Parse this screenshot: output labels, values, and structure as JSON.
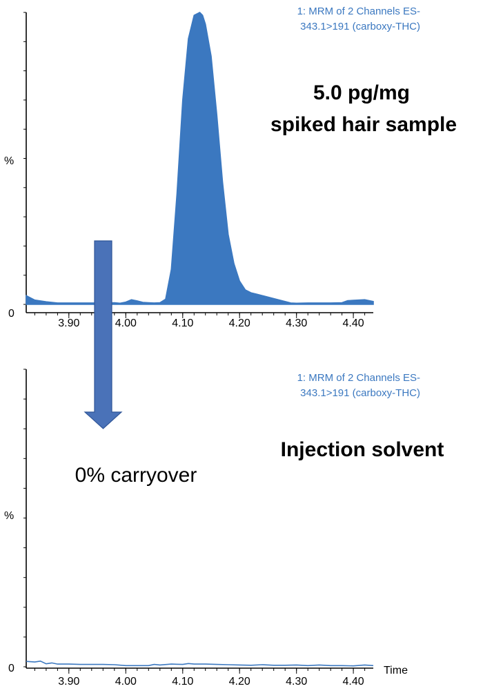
{
  "chart_data": [
    {
      "type": "line",
      "channel_line1": "1: MRM of 2 Channels ES-",
      "channel_line2": "343.1>191 (carboxy-THC)",
      "annotation_line1": "5.0 pg/mg",
      "annotation_line2": "spiked hair sample",
      "ylabel": "%",
      "y_zero_label": "0",
      "xlabel": "",
      "x_ticks": [
        "3.90",
        "4.00",
        "4.10",
        "4.20",
        "4.30",
        "4.40"
      ],
      "xlim": [
        3.825,
        4.435
      ],
      "ylim": [
        0,
        100
      ],
      "filled_peak": true,
      "color": "#3b78c0",
      "series": [
        {
          "x": [
            3.825,
            3.84,
            3.86,
            3.88,
            3.9,
            3.92,
            3.94,
            3.96,
            3.98,
            3.99,
            4.0,
            4.01,
            4.02,
            4.03,
            4.04,
            4.05,
            4.06,
            4.07,
            4.08,
            4.09,
            4.1,
            4.11,
            4.12,
            4.13,
            4.135,
            4.14,
            4.15,
            4.16,
            4.17,
            4.18,
            4.19,
            4.2,
            4.21,
            4.22,
            4.23,
            4.24,
            4.25,
            4.26,
            4.27,
            4.28,
            4.29,
            4.3,
            4.32,
            4.34,
            4.36,
            4.38,
            4.39,
            4.4,
            4.42,
            4.435
          ],
          "y": [
            3.0,
            1.5,
            0.9,
            0.5,
            0.5,
            0.5,
            0.5,
            0.5,
            0.6,
            0.4,
            0.8,
            1.6,
            1.2,
            0.7,
            0.6,
            0.5,
            0.6,
            1.8,
            12,
            38,
            70,
            91,
            99,
            100,
            99,
            96,
            85,
            65,
            42,
            24,
            14,
            8,
            5,
            4,
            3.5,
            3.0,
            2.5,
            2.0,
            1.5,
            1.0,
            0.5,
            0.4,
            0.5,
            0.5,
            0.5,
            0.6,
            1.3,
            1.4,
            1.6,
            1.0
          ]
        }
      ]
    },
    {
      "type": "line",
      "channel_line1": "1: MRM of 2 Channels ES-",
      "channel_line2": "343.1>191 (carboxy-THC)",
      "annotation_line1": "Injection solvent",
      "ylabel": "%",
      "y_zero_label": "0",
      "xlabel": "Time",
      "x_ticks": [
        "3.90",
        "4.00",
        "4.10",
        "4.20",
        "4.30",
        "4.40"
      ],
      "xlim": [
        3.825,
        4.435
      ],
      "ylim": [
        0,
        100
      ],
      "filled_peak": false,
      "color": "#3b78c0",
      "series": [
        {
          "x": [
            3.825,
            3.84,
            3.85,
            3.86,
            3.87,
            3.88,
            3.9,
            3.92,
            3.94,
            3.96,
            3.98,
            4.0,
            4.02,
            4.04,
            4.05,
            4.06,
            4.08,
            4.1,
            4.11,
            4.12,
            4.14,
            4.16,
            4.18,
            4.2,
            4.22,
            4.24,
            4.26,
            4.28,
            4.3,
            4.32,
            4.34,
            4.36,
            4.38,
            4.4,
            4.42,
            4.435
          ],
          "y": [
            1.8,
            1.6,
            1.9,
            1.0,
            1.3,
            0.9,
            0.9,
            0.8,
            0.8,
            0.8,
            0.7,
            0.4,
            0.4,
            0.4,
            0.8,
            0.6,
            0.9,
            0.8,
            1.1,
            0.9,
            0.9,
            0.8,
            0.7,
            0.6,
            0.5,
            0.7,
            0.5,
            0.5,
            0.6,
            0.4,
            0.6,
            0.4,
            0.4,
            0.3,
            0.6,
            0.4
          ]
        }
      ]
    }
  ],
  "overlay": {
    "arrow_color": "#4a72b8",
    "carryover_label": "0% carryover"
  }
}
